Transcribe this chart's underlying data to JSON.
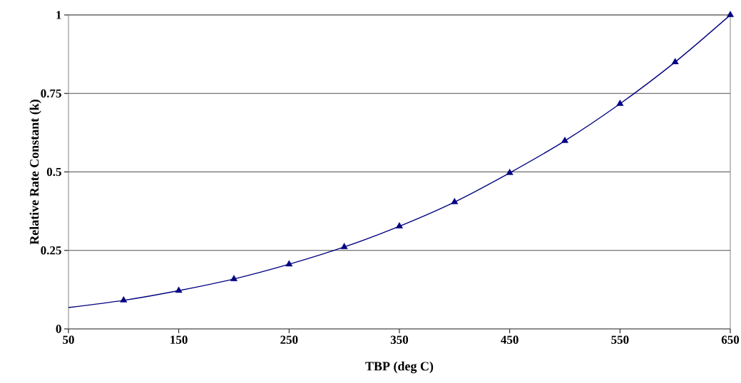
{
  "chart_data": {
    "type": "line",
    "xlabel": "TBP (deg C)",
    "ylabel": "Relative Rate Constant (k)",
    "xlim": [
      50,
      650
    ],
    "xticks": [
      50,
      150,
      250,
      350,
      450,
      550,
      650
    ],
    "ylim": [
      0,
      1
    ],
    "yticks": [
      0,
      0.25,
      0.5,
      0.75,
      1
    ],
    "grid": "y",
    "series": [
      {
        "color": "#000080",
        "marker": "none",
        "x": [
          50,
          100,
          150,
          200,
          250,
          300,
          350,
          400,
          450,
          500,
          550,
          600,
          650
        ],
        "values": [
          0.068,
          0.091,
          0.122,
          0.159,
          0.206,
          0.261,
          0.327,
          0.404,
          0.497,
          0.599,
          0.717,
          0.85,
          1.0
        ]
      },
      {
        "type": "scatter",
        "color": "#000080",
        "marker": "triangle",
        "x": [
          100,
          150,
          200,
          250,
          300,
          350,
          400,
          450,
          500,
          550,
          600,
          650
        ],
        "values": [
          0.091,
          0.122,
          0.159,
          0.206,
          0.261,
          0.327,
          0.404,
          0.497,
          0.599,
          0.717,
          0.85,
          1.0
        ]
      }
    ]
  }
}
